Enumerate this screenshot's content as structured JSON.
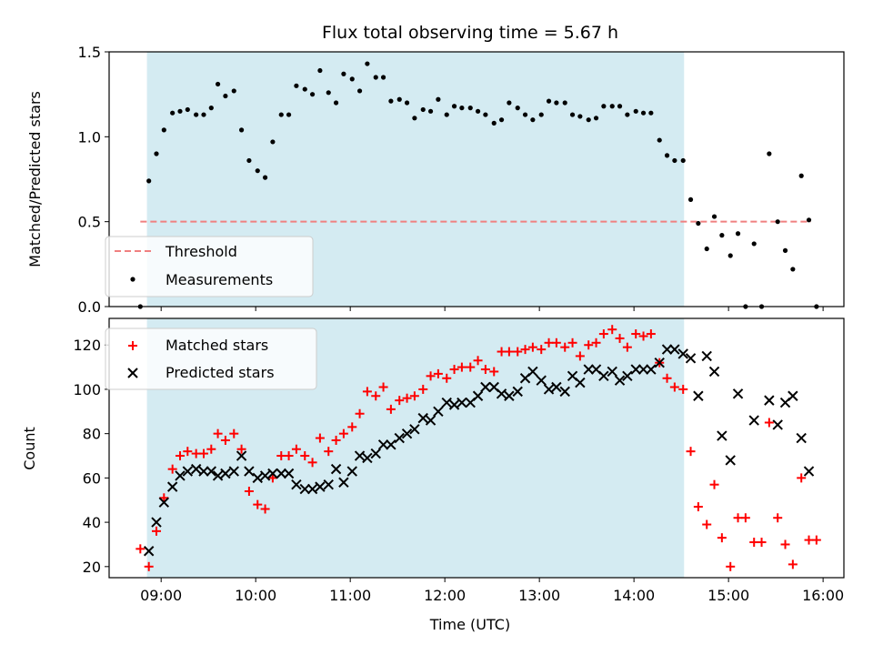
{
  "chart_data": {
    "type": "scatter",
    "title": "Flux total observing time = 5.67 h",
    "xlabel": "Time (UTC)",
    "x_ticks": [
      "09:00",
      "10:00",
      "11:00",
      "12:00",
      "13:00",
      "14:00",
      "15:00",
      "16:00"
    ],
    "x_unit": "hours UTC",
    "x_range": [
      8.45,
      16.22
    ],
    "observing_window": [
      8.85,
      14.53
    ],
    "colors": {
      "window": "#d4ebf2",
      "threshold": "#f08080",
      "matched": "#ff0000",
      "predicted": "#000000",
      "measurement": "#000000"
    },
    "top_panel": {
      "ylabel": "Matched/Predicted stars",
      "ylim": [
        0,
        1.5
      ],
      "y_ticks": [
        "0.0",
        "0.5",
        "1.0",
        "1.5"
      ],
      "threshold": {
        "name": "Threshold",
        "value": 0.5,
        "x_range": [
          8.78,
          15.87
        ]
      },
      "series": [
        {
          "name": "Measurements",
          "points": [
            [
              8.78,
              0.0
            ],
            [
              8.87,
              0.74
            ],
            [
              8.95,
              0.9
            ],
            [
              9.03,
              1.04
            ],
            [
              9.12,
              1.14
            ],
            [
              9.2,
              1.15
            ],
            [
              9.28,
              1.16
            ],
            [
              9.37,
              1.13
            ],
            [
              9.45,
              1.13
            ],
            [
              9.53,
              1.17
            ],
            [
              9.6,
              1.31
            ],
            [
              9.68,
              1.24
            ],
            [
              9.77,
              1.27
            ],
            [
              9.85,
              1.04
            ],
            [
              9.93,
              0.86
            ],
            [
              10.02,
              0.8
            ],
            [
              10.1,
              0.76
            ],
            [
              10.18,
              0.97
            ],
            [
              10.27,
              1.13
            ],
            [
              10.35,
              1.13
            ],
            [
              10.43,
              1.3
            ],
            [
              10.52,
              1.28
            ],
            [
              10.6,
              1.25
            ],
            [
              10.68,
              1.39
            ],
            [
              10.77,
              1.26
            ],
            [
              10.85,
              1.2
            ],
            [
              10.93,
              1.37
            ],
            [
              11.02,
              1.34
            ],
            [
              11.1,
              1.27
            ],
            [
              11.18,
              1.43
            ],
            [
              11.27,
              1.35
            ],
            [
              11.35,
              1.35
            ],
            [
              11.43,
              1.21
            ],
            [
              11.52,
              1.22
            ],
            [
              11.6,
              1.2
            ],
            [
              11.68,
              1.11
            ],
            [
              11.77,
              1.16
            ],
            [
              11.85,
              1.15
            ],
            [
              11.93,
              1.22
            ],
            [
              12.02,
              1.13
            ],
            [
              12.1,
              1.18
            ],
            [
              12.18,
              1.17
            ],
            [
              12.27,
              1.17
            ],
            [
              12.35,
              1.15
            ],
            [
              12.43,
              1.13
            ],
            [
              12.52,
              1.08
            ],
            [
              12.6,
              1.1
            ],
            [
              12.68,
              1.2
            ],
            [
              12.77,
              1.17
            ],
            [
              12.85,
              1.13
            ],
            [
              12.93,
              1.1
            ],
            [
              13.02,
              1.13
            ],
            [
              13.1,
              1.21
            ],
            [
              13.18,
              1.2
            ],
            [
              13.27,
              1.2
            ],
            [
              13.35,
              1.13
            ],
            [
              13.43,
              1.12
            ],
            [
              13.52,
              1.1
            ],
            [
              13.6,
              1.11
            ],
            [
              13.68,
              1.18
            ],
            [
              13.77,
              1.18
            ],
            [
              13.85,
              1.18
            ],
            [
              13.93,
              1.13
            ],
            [
              14.02,
              1.15
            ],
            [
              14.1,
              1.14
            ],
            [
              14.18,
              1.14
            ],
            [
              14.27,
              0.98
            ],
            [
              14.35,
              0.89
            ],
            [
              14.43,
              0.86
            ],
            [
              14.52,
              0.86
            ],
            [
              14.6,
              0.63
            ],
            [
              14.68,
              0.49
            ],
            [
              14.77,
              0.34
            ],
            [
              14.85,
              0.53
            ],
            [
              14.93,
              0.42
            ],
            [
              15.02,
              0.3
            ],
            [
              15.1,
              0.43
            ],
            [
              15.18,
              0.0
            ],
            [
              15.27,
              0.37
            ],
            [
              15.35,
              0.0
            ],
            [
              15.43,
              0.9
            ],
            [
              15.52,
              0.5
            ],
            [
              15.6,
              0.33
            ],
            [
              15.68,
              0.22
            ],
            [
              15.77,
              0.77
            ],
            [
              15.85,
              0.51
            ],
            [
              15.93,
              0.0
            ]
          ]
        }
      ],
      "legend": {
        "placement": "lower-left",
        "entries": [
          "Threshold",
          "Measurements"
        ]
      }
    },
    "bottom_panel": {
      "ylabel": "Count",
      "ylim": [
        15,
        132
      ],
      "y_ticks": [
        "20",
        "40",
        "60",
        "80",
        "100",
        "120"
      ],
      "series": [
        {
          "name": "Matched stars",
          "marker": "plus",
          "points": [
            [
              8.78,
              28
            ],
            [
              8.87,
              20
            ],
            [
              8.95,
              36
            ],
            [
              9.03,
              51
            ],
            [
              9.12,
              64
            ],
            [
              9.2,
              70
            ],
            [
              9.28,
              72
            ],
            [
              9.37,
              71
            ],
            [
              9.45,
              71
            ],
            [
              9.53,
              73
            ],
            [
              9.6,
              80
            ],
            [
              9.68,
              77
            ],
            [
              9.77,
              80
            ],
            [
              9.85,
              73
            ],
            [
              9.93,
              54
            ],
            [
              10.02,
              48
            ],
            [
              10.1,
              46
            ],
            [
              10.18,
              60
            ],
            [
              10.27,
              70
            ],
            [
              10.35,
              70
            ],
            [
              10.43,
              73
            ],
            [
              10.52,
              70
            ],
            [
              10.6,
              67
            ],
            [
              10.68,
              78
            ],
            [
              10.77,
              72
            ],
            [
              10.85,
              77
            ],
            [
              10.93,
              80
            ],
            [
              11.02,
              83
            ],
            [
              11.1,
              89
            ],
            [
              11.18,
              99
            ],
            [
              11.27,
              97
            ],
            [
              11.35,
              101
            ],
            [
              11.43,
              91
            ],
            [
              11.52,
              95
            ],
            [
              11.6,
              96
            ],
            [
              11.68,
              97
            ],
            [
              11.77,
              100
            ],
            [
              11.85,
              106
            ],
            [
              11.93,
              107
            ],
            [
              12.02,
              105
            ],
            [
              12.1,
              109
            ],
            [
              12.18,
              110
            ],
            [
              12.27,
              110
            ],
            [
              12.35,
              113
            ],
            [
              12.43,
              109
            ],
            [
              12.52,
              108
            ],
            [
              12.6,
              117
            ],
            [
              12.68,
              117
            ],
            [
              12.77,
              117
            ],
            [
              12.85,
              118
            ],
            [
              12.93,
              119
            ],
            [
              13.02,
              118
            ],
            [
              13.1,
              121
            ],
            [
              13.18,
              121
            ],
            [
              13.27,
              119
            ],
            [
              13.35,
              121
            ],
            [
              13.43,
              115
            ],
            [
              13.52,
              120
            ],
            [
              13.6,
              121
            ],
            [
              13.68,
              125
            ],
            [
              13.77,
              127
            ],
            [
              13.85,
              123
            ],
            [
              13.93,
              119
            ],
            [
              14.02,
              125
            ],
            [
              14.1,
              124
            ],
            [
              14.18,
              125
            ],
            [
              14.27,
              112
            ],
            [
              14.35,
              105
            ],
            [
              14.43,
              101
            ],
            [
              14.52,
              100
            ],
            [
              14.6,
              72
            ],
            [
              14.68,
              47
            ],
            [
              14.77,
              39
            ],
            [
              14.85,
              57
            ],
            [
              14.93,
              33
            ],
            [
              15.02,
              20
            ],
            [
              15.1,
              42
            ],
            [
              15.18,
              42
            ],
            [
              15.27,
              31
            ],
            [
              15.35,
              31
            ],
            [
              15.43,
              85
            ],
            [
              15.52,
              42
            ],
            [
              15.6,
              30
            ],
            [
              15.68,
              21
            ],
            [
              15.77,
              60
            ],
            [
              15.85,
              32
            ],
            [
              15.93,
              32
            ]
          ]
        },
        {
          "name": "Predicted stars",
          "marker": "x",
          "points": [
            [
              8.87,
              27
            ],
            [
              8.95,
              40
            ],
            [
              9.03,
              49
            ],
            [
              9.12,
              56
            ],
            [
              9.2,
              61
            ],
            [
              9.28,
              63
            ],
            [
              9.37,
              64
            ],
            [
              9.45,
              63
            ],
            [
              9.53,
              63
            ],
            [
              9.6,
              61
            ],
            [
              9.68,
              62
            ],
            [
              9.77,
              63
            ],
            [
              9.85,
              70
            ],
            [
              9.93,
              63
            ],
            [
              10.02,
              60
            ],
            [
              10.1,
              61
            ],
            [
              10.18,
              62
            ],
            [
              10.27,
              62
            ],
            [
              10.35,
              62
            ],
            [
              10.43,
              57
            ],
            [
              10.52,
              55
            ],
            [
              10.6,
              55
            ],
            [
              10.68,
              56
            ],
            [
              10.77,
              57
            ],
            [
              10.85,
              64
            ],
            [
              10.93,
              58
            ],
            [
              11.02,
              63
            ],
            [
              11.1,
              70
            ],
            [
              11.18,
              69
            ],
            [
              11.27,
              71
            ],
            [
              11.35,
              75
            ],
            [
              11.43,
              75
            ],
            [
              11.52,
              78
            ],
            [
              11.6,
              80
            ],
            [
              11.68,
              82
            ],
            [
              11.77,
              87
            ],
            [
              11.85,
              86
            ],
            [
              11.93,
              90
            ],
            [
              12.02,
              94
            ],
            [
              12.1,
              93
            ],
            [
              12.18,
              94
            ],
            [
              12.27,
              94
            ],
            [
              12.35,
              97
            ],
            [
              12.43,
              101
            ],
            [
              12.52,
              101
            ],
            [
              12.6,
              98
            ],
            [
              12.68,
              97
            ],
            [
              12.77,
              99
            ],
            [
              12.85,
              105
            ],
            [
              12.93,
              108
            ],
            [
              13.02,
              104
            ],
            [
              13.1,
              100
            ],
            [
              13.18,
              101
            ],
            [
              13.27,
              99
            ],
            [
              13.35,
              106
            ],
            [
              13.43,
              103
            ],
            [
              13.52,
              109
            ],
            [
              13.6,
              109
            ],
            [
              13.68,
              106
            ],
            [
              13.77,
              108
            ],
            [
              13.85,
              104
            ],
            [
              13.93,
              106
            ],
            [
              14.02,
              109
            ],
            [
              14.1,
              109
            ],
            [
              14.18,
              109
            ],
            [
              14.27,
              112
            ],
            [
              14.35,
              118
            ],
            [
              14.43,
              118
            ],
            [
              14.52,
              116
            ],
            [
              14.6,
              114
            ],
            [
              14.68,
              97
            ],
            [
              14.77,
              115
            ],
            [
              14.85,
              108
            ],
            [
              14.93,
              79
            ],
            [
              15.02,
              68
            ],
            [
              15.1,
              98
            ],
            [
              15.27,
              86
            ],
            [
              15.43,
              95
            ],
            [
              15.52,
              84
            ],
            [
              15.6,
              94
            ],
            [
              15.68,
              97
            ],
            [
              15.77,
              78
            ],
            [
              15.85,
              63
            ]
          ]
        }
      ],
      "legend": {
        "placement": "upper-left",
        "entries": [
          "Matched stars",
          "Predicted stars"
        ]
      }
    }
  }
}
